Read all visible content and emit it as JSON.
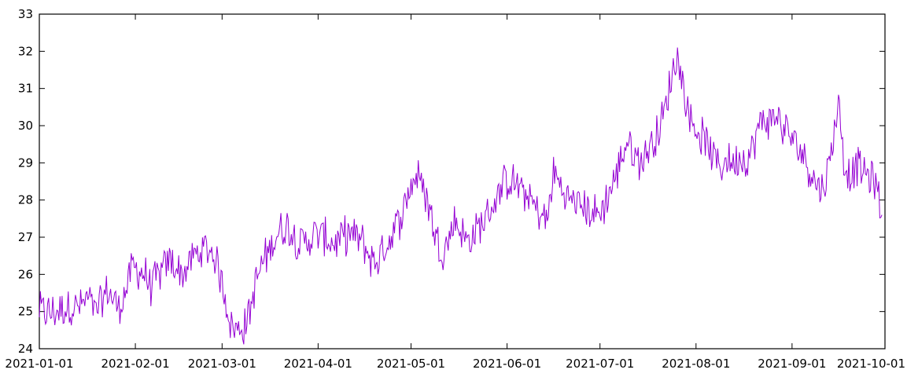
{
  "chart_data": {
    "type": "line",
    "title": "",
    "xlabel": "",
    "ylabel": "",
    "x_axis": {
      "type": "date",
      "range": [
        "2021-01-01",
        "2021-10-01"
      ],
      "ticks": [
        {
          "date": "2021-01-01",
          "label": "2021-01-01"
        },
        {
          "date": "2021-02-01",
          "label": "2021-02-01"
        },
        {
          "date": "2021-03-01",
          "label": "2021-03-01"
        },
        {
          "date": "2021-04-01",
          "label": "2021-04-01"
        },
        {
          "date": "2021-05-01",
          "label": "2021-05-01"
        },
        {
          "date": "2021-06-01",
          "label": "2021-06-01"
        },
        {
          "date": "2021-07-01",
          "label": "2021-07-01"
        },
        {
          "date": "2021-08-01",
          "label": "2021-08-01"
        },
        {
          "date": "2021-09-01",
          "label": "2021-09-01"
        },
        {
          "date": "2021-10-01",
          "label": "2021-10-01"
        }
      ]
    },
    "y_axis": {
      "range": [
        24,
        33
      ],
      "ticks": [
        24,
        25,
        26,
        27,
        28,
        29,
        30,
        31,
        32,
        33
      ]
    },
    "grid": false,
    "legend": "none",
    "series": [
      {
        "color": "#9400d3",
        "points": [
          [
            "2021-01-01",
            25.05
          ],
          [
            "2021-01-03",
            25.0
          ],
          [
            "2021-01-05",
            24.95
          ],
          [
            "2021-01-07",
            25.05
          ],
          [
            "2021-01-09",
            25.1
          ],
          [
            "2021-01-11",
            25.15
          ],
          [
            "2021-01-13",
            25.1
          ],
          [
            "2021-01-15",
            25.2
          ],
          [
            "2021-01-17",
            25.35
          ],
          [
            "2021-01-19",
            24.95
          ],
          [
            "2021-01-21",
            25.2
          ],
          [
            "2021-01-23",
            25.6
          ],
          [
            "2021-01-25",
            25.3
          ],
          [
            "2021-01-27",
            25.1
          ],
          [
            "2021-01-29",
            25.6
          ],
          [
            "2021-01-31",
            26.2
          ],
          [
            "2021-02-02",
            26.1
          ],
          [
            "2021-02-04",
            26.0
          ],
          [
            "2021-02-06",
            25.7
          ],
          [
            "2021-02-08",
            25.9
          ],
          [
            "2021-02-10",
            26.1
          ],
          [
            "2021-02-12",
            26.4
          ],
          [
            "2021-02-14",
            26.2
          ],
          [
            "2021-02-16",
            26.0
          ],
          [
            "2021-02-18",
            26.2
          ],
          [
            "2021-02-20",
            26.5
          ],
          [
            "2021-02-22",
            26.6
          ],
          [
            "2021-02-24",
            26.7
          ],
          [
            "2021-02-26",
            26.6
          ],
          [
            "2021-02-28",
            26.1
          ],
          [
            "2021-03-02",
            25.4
          ],
          [
            "2021-03-04",
            24.6
          ],
          [
            "2021-03-06",
            24.5
          ],
          [
            "2021-03-08",
            24.6
          ],
          [
            "2021-03-10",
            25.0
          ],
          [
            "2021-03-12",
            25.8
          ],
          [
            "2021-03-14",
            26.3
          ],
          [
            "2021-03-16",
            26.6
          ],
          [
            "2021-03-18",
            27.0
          ],
          [
            "2021-03-20",
            27.2
          ],
          [
            "2021-03-22",
            27.3
          ],
          [
            "2021-03-24",
            27.1
          ],
          [
            "2021-03-26",
            26.8
          ],
          [
            "2021-03-28",
            26.9
          ],
          [
            "2021-03-30",
            27.0
          ],
          [
            "2021-04-01",
            27.1
          ],
          [
            "2021-04-03",
            27.0
          ],
          [
            "2021-04-05",
            26.9
          ],
          [
            "2021-04-07",
            26.8
          ],
          [
            "2021-04-09",
            27.0
          ],
          [
            "2021-04-11",
            27.1
          ],
          [
            "2021-04-13",
            27.0
          ],
          [
            "2021-04-15",
            26.9
          ],
          [
            "2021-04-17",
            26.6
          ],
          [
            "2021-04-19",
            26.3
          ],
          [
            "2021-04-21",
            26.5
          ],
          [
            "2021-04-23",
            26.8
          ],
          [
            "2021-04-25",
            27.1
          ],
          [
            "2021-04-27",
            27.4
          ],
          [
            "2021-04-29",
            27.9
          ],
          [
            "2021-05-01",
            28.4
          ],
          [
            "2021-05-03",
            28.7
          ],
          [
            "2021-05-05",
            28.3
          ],
          [
            "2021-05-07",
            27.8
          ],
          [
            "2021-05-09",
            27.0
          ],
          [
            "2021-05-11",
            26.6
          ],
          [
            "2021-05-13",
            26.9
          ],
          [
            "2021-05-15",
            27.5
          ],
          [
            "2021-05-17",
            27.2
          ],
          [
            "2021-05-19",
            26.9
          ],
          [
            "2021-05-21",
            27.0
          ],
          [
            "2021-05-23",
            27.3
          ],
          [
            "2021-05-25",
            27.5
          ],
          [
            "2021-05-27",
            27.8
          ],
          [
            "2021-05-29",
            28.1
          ],
          [
            "2021-05-31",
            28.4
          ],
          [
            "2021-06-02",
            28.6
          ],
          [
            "2021-06-04",
            28.4
          ],
          [
            "2021-06-06",
            28.2
          ],
          [
            "2021-06-08",
            28.1
          ],
          [
            "2021-06-10",
            27.8
          ],
          [
            "2021-06-12",
            27.6
          ],
          [
            "2021-06-14",
            27.4
          ],
          [
            "2021-06-16",
            28.8
          ],
          [
            "2021-06-18",
            28.4
          ],
          [
            "2021-06-20",
            28.1
          ],
          [
            "2021-06-22",
            28.0
          ],
          [
            "2021-06-24",
            27.9
          ],
          [
            "2021-06-26",
            27.8
          ],
          [
            "2021-06-28",
            27.7
          ],
          [
            "2021-06-30",
            27.6
          ],
          [
            "2021-07-02",
            27.8
          ],
          [
            "2021-07-04",
            28.2
          ],
          [
            "2021-07-06",
            28.6
          ],
          [
            "2021-07-08",
            29.2
          ],
          [
            "2021-07-10",
            29.6
          ],
          [
            "2021-07-12",
            29.2
          ],
          [
            "2021-07-14",
            29.0
          ],
          [
            "2021-07-16",
            29.3
          ],
          [
            "2021-07-18",
            29.6
          ],
          [
            "2021-07-20",
            29.9
          ],
          [
            "2021-07-22",
            30.4
          ],
          [
            "2021-07-24",
            31.3
          ],
          [
            "2021-07-26",
            31.9
          ],
          [
            "2021-07-28",
            31.0
          ],
          [
            "2021-07-30",
            30.2
          ],
          [
            "2021-08-01",
            29.9
          ],
          [
            "2021-08-03",
            29.7
          ],
          [
            "2021-08-05",
            29.4
          ],
          [
            "2021-08-07",
            29.1
          ],
          [
            "2021-08-09",
            28.9
          ],
          [
            "2021-08-11",
            29.1
          ],
          [
            "2021-08-13",
            29.0
          ],
          [
            "2021-08-15",
            29.2
          ],
          [
            "2021-08-17",
            29.1
          ],
          [
            "2021-08-19",
            29.3
          ],
          [
            "2021-08-21",
            29.9
          ],
          [
            "2021-08-23",
            30.2
          ],
          [
            "2021-08-25",
            30.1
          ],
          [
            "2021-08-27",
            30.3
          ],
          [
            "2021-08-29",
            29.9
          ],
          [
            "2021-08-31",
            29.8
          ],
          [
            "2021-09-02",
            29.5
          ],
          [
            "2021-09-04",
            29.3
          ],
          [
            "2021-09-06",
            29.0
          ],
          [
            "2021-09-08",
            28.6
          ],
          [
            "2021-09-10",
            28.3
          ],
          [
            "2021-09-12",
            28.5
          ],
          [
            "2021-09-14",
            29.5
          ],
          [
            "2021-09-16",
            30.7
          ],
          [
            "2021-09-18",
            28.9
          ],
          [
            "2021-09-20",
            28.7
          ],
          [
            "2021-09-22",
            28.9
          ],
          [
            "2021-09-24",
            28.8
          ],
          [
            "2021-09-26",
            28.6
          ],
          [
            "2021-09-28",
            28.4
          ],
          [
            "2021-09-30",
            27.6
          ]
        ]
      }
    ]
  }
}
